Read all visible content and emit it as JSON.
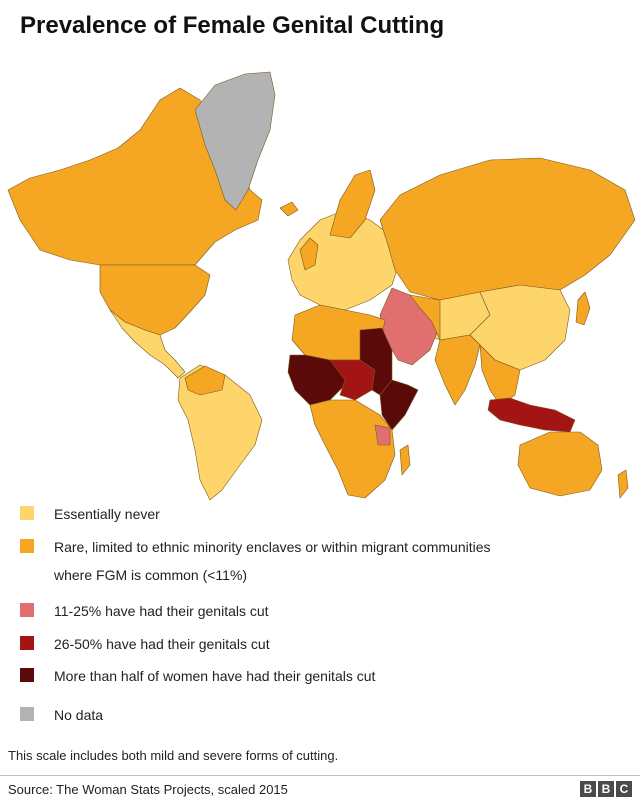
{
  "title": "Prevalence of Female Genital Cutting",
  "colors": {
    "never": "#fdd56b",
    "rare": "#f5a623",
    "low": "#e07070",
    "mid": "#a31515",
    "high": "#5b0a0a",
    "nodata": "#b3b3b3",
    "border": "#7a5a20"
  },
  "legend": [
    {
      "color": "#fdd56b",
      "lines": [
        "Essentially never"
      ]
    },
    {
      "color": "#f5a623",
      "lines": [
        "Rare, limited to ethnic minority enclaves or within migrant communities",
        "where FGM is common (<11%)"
      ]
    },
    {
      "color": "#e07070",
      "lines": [
        "11-25% have had their genitals cut"
      ]
    },
    {
      "color": "#a31515",
      "lines": [
        "26-50% have had their genitals cut"
      ]
    },
    {
      "color": "#5b0a0a",
      "lines": [
        "More than half of women have had their genitals cut"
      ]
    },
    {
      "color": "#b3b3b3",
      "lines": [
        "No data"
      ]
    }
  ],
  "note": "This scale includes both mild and severe forms of cutting.",
  "source": "Source: The Woman Stats Projects, scaled 2015",
  "logo": {
    "letters": [
      "B",
      "B",
      "C"
    ]
  }
}
